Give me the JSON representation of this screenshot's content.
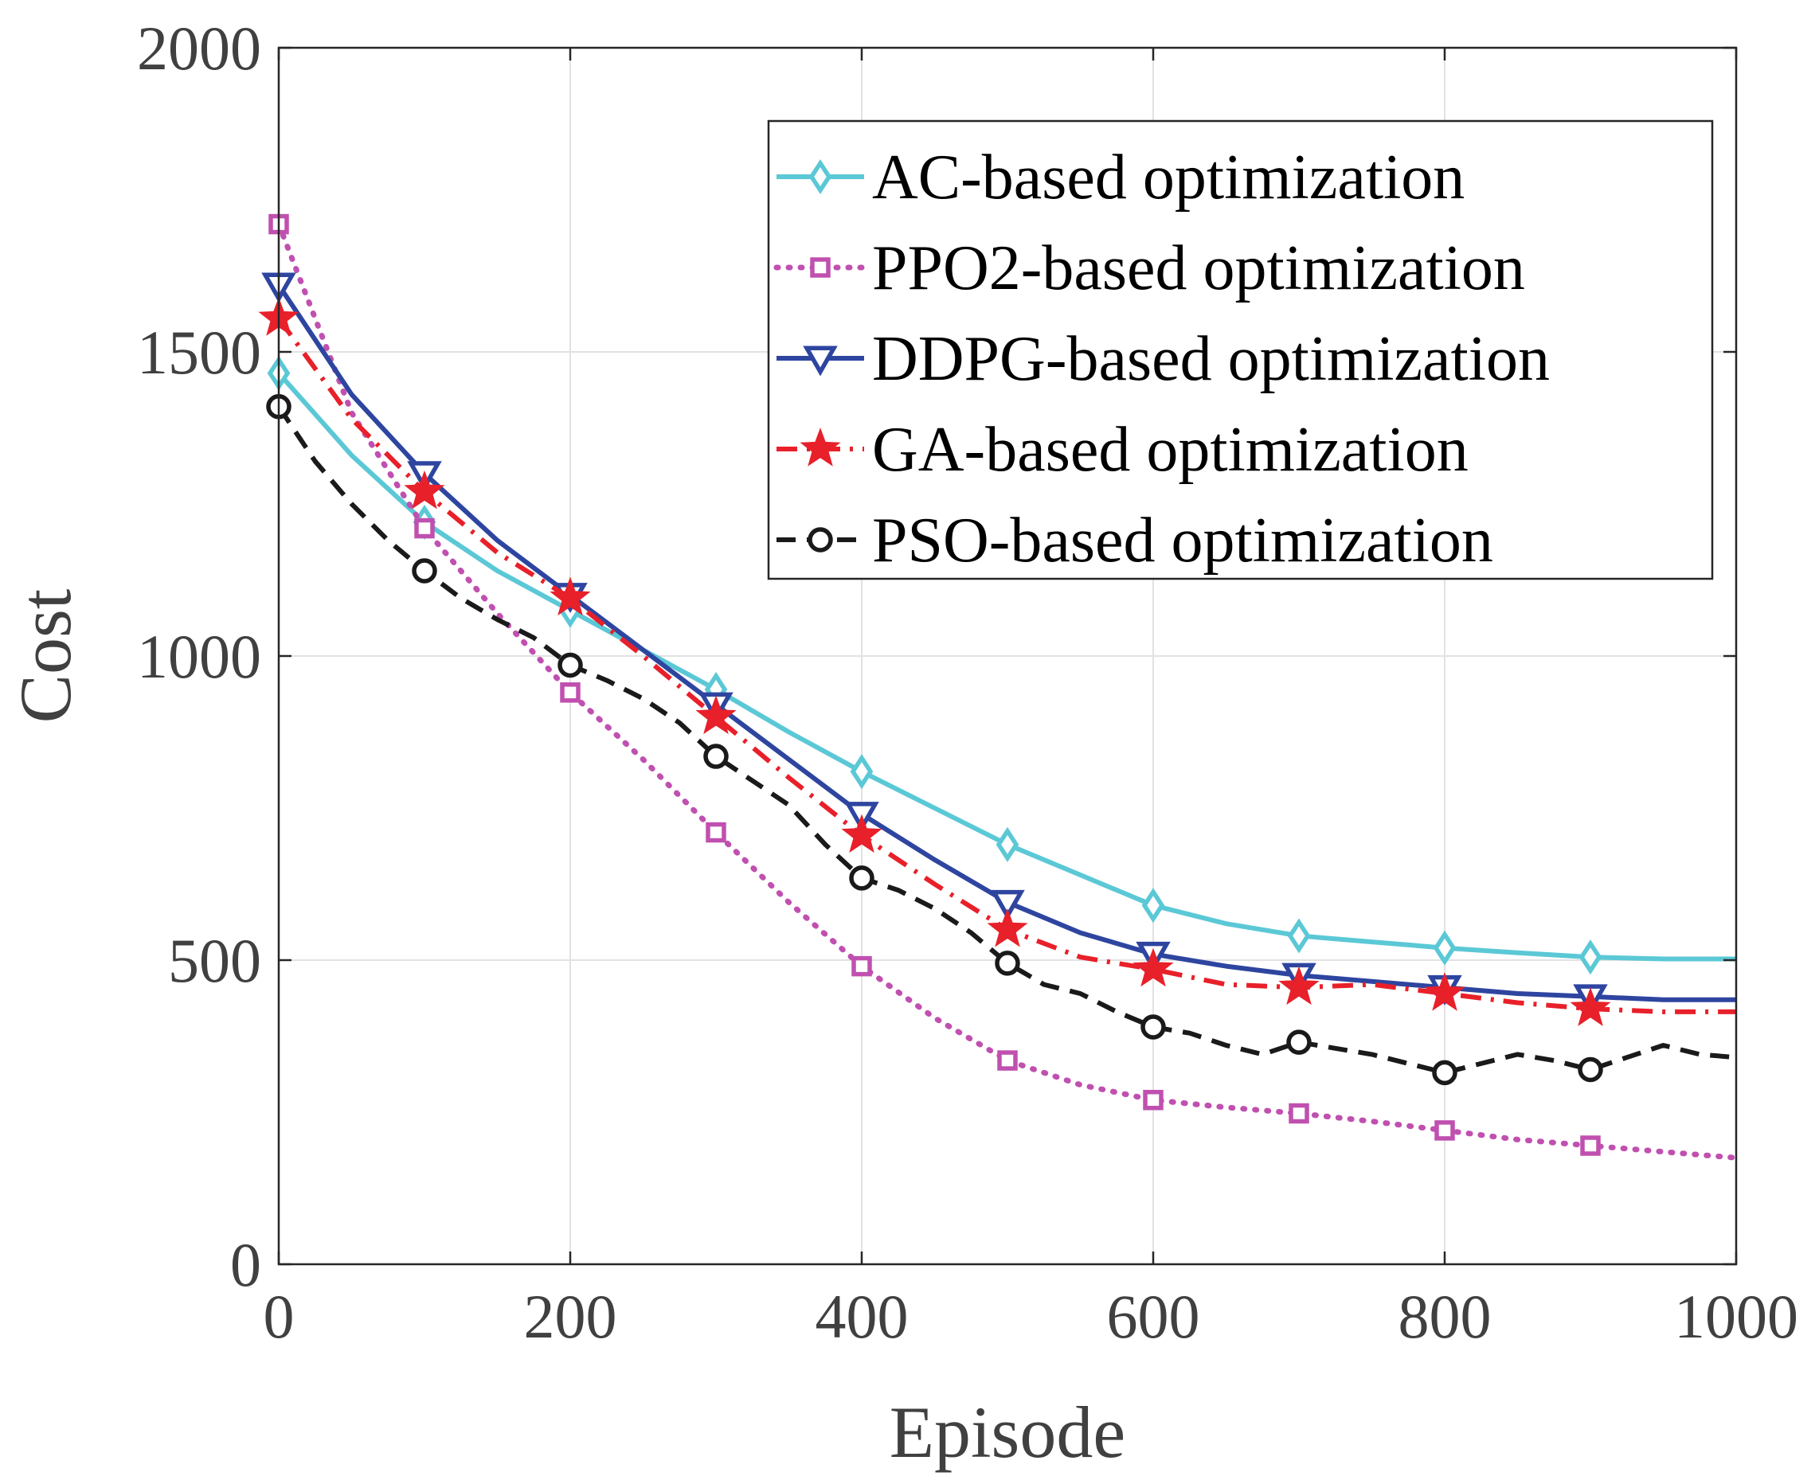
{
  "chart_data": {
    "type": "line",
    "title": "",
    "xlabel": "Episode",
    "ylabel": "Cost",
    "xlim": [
      0,
      1000
    ],
    "ylim": [
      0,
      2000
    ],
    "xticks": [
      0,
      200,
      400,
      600,
      800,
      1000
    ],
    "yticks": [
      0,
      500,
      1000,
      1500,
      2000
    ],
    "grid": true,
    "legend_position": "top-right",
    "series": [
      {
        "name": "AC-based optimization",
        "color": "#5bc8d6",
        "dash": "solid",
        "marker": "diamond",
        "x": [
          0,
          50,
          100,
          150,
          200,
          250,
          300,
          350,
          400,
          450,
          500,
          550,
          600,
          650,
          700,
          750,
          800,
          850,
          900,
          950,
          1000
        ],
        "y": [
          1465,
          1330,
          1220,
          1140,
          1075,
          1010,
          945,
          875,
          810,
          750,
          690,
          640,
          590,
          560,
          540,
          530,
          520,
          512,
          505,
          502,
          502
        ],
        "markers_x": [
          0,
          100,
          200,
          300,
          400,
          500,
          600,
          700,
          800,
          900
        ],
        "markers_y": [
          1465,
          1220,
          1075,
          945,
          810,
          690,
          590,
          540,
          520,
          505
        ]
      },
      {
        "name": "PPO2-based optimization",
        "color": "#c050b0",
        "dash": "dotted",
        "marker": "square",
        "x": [
          0,
          50,
          100,
          150,
          200,
          250,
          300,
          350,
          400,
          450,
          500,
          550,
          600,
          650,
          700,
          750,
          800,
          850,
          900,
          950,
          1000
        ],
        "y": [
          1710,
          1400,
          1210,
          1070,
          940,
          830,
          710,
          595,
          490,
          405,
          335,
          295,
          270,
          258,
          248,
          235,
          220,
          205,
          195,
          185,
          175
        ],
        "markers_x": [
          0,
          100,
          200,
          300,
          400,
          500,
          600,
          700,
          800,
          900
        ],
        "markers_y": [
          1710,
          1210,
          940,
          710,
          490,
          335,
          270,
          248,
          220,
          195
        ]
      },
      {
        "name": "DDPG-based optimization",
        "color": "#2e45a0",
        "dash": "solid",
        "marker": "triangle-down",
        "x": [
          0,
          50,
          100,
          150,
          200,
          250,
          300,
          350,
          400,
          450,
          500,
          550,
          600,
          650,
          700,
          750,
          800,
          850,
          900,
          950,
          1000
        ],
        "y": [
          1610,
          1430,
          1300,
          1190,
          1100,
          1010,
          920,
          830,
          740,
          665,
          595,
          545,
          510,
          490,
          475,
          465,
          455,
          445,
          440,
          435,
          435
        ],
        "markers_x": [
          0,
          100,
          200,
          300,
          400,
          500,
          600,
          700,
          800,
          900
        ],
        "markers_y": [
          1610,
          1300,
          1100,
          920,
          740,
          595,
          510,
          475,
          455,
          440
        ]
      },
      {
        "name": "GA-based optimization",
        "color": "#e8202a",
        "dash": "dashdot",
        "marker": "star",
        "x": [
          0,
          50,
          100,
          150,
          200,
          250,
          300,
          350,
          400,
          450,
          500,
          550,
          600,
          650,
          700,
          750,
          800,
          850,
          900,
          950,
          1000
        ],
        "y": [
          1555,
          1390,
          1270,
          1170,
          1095,
          1000,
          900,
          800,
          705,
          625,
          550,
          505,
          485,
          460,
          455,
          460,
          445,
          430,
          420,
          415,
          415
        ],
        "markers_x": [
          0,
          100,
          200,
          300,
          400,
          500,
          600,
          700,
          800,
          900
        ],
        "markers_y": [
          1555,
          1270,
          1095,
          900,
          705,
          550,
          485,
          455,
          445,
          420
        ]
      },
      {
        "name": "PSO-based optimization",
        "color": "#1a1a1a",
        "dash": "dashed",
        "marker": "circle",
        "x": [
          0,
          25,
          50,
          75,
          100,
          125,
          150,
          175,
          200,
          225,
          250,
          275,
          300,
          325,
          350,
          375,
          400,
          425,
          450,
          475,
          500,
          525,
          550,
          575,
          600,
          625,
          650,
          675,
          700,
          725,
          750,
          775,
          800,
          825,
          850,
          875,
          900,
          925,
          950,
          975,
          1000
        ],
        "y": [
          1410,
          1320,
          1250,
          1190,
          1140,
          1095,
          1060,
          1030,
          985,
          960,
          930,
          890,
          835,
          795,
          755,
          690,
          635,
          615,
          585,
          545,
          495,
          460,
          445,
          415,
          390,
          380,
          360,
          345,
          365,
          355,
          345,
          330,
          315,
          330,
          345,
          335,
          320,
          340,
          360,
          345,
          340
        ],
        "markers_x": [
          0,
          100,
          200,
          300,
          400,
          500,
          600,
          700,
          800,
          900
        ],
        "markers_y": [
          1410,
          1140,
          985,
          835,
          635,
          495,
          390,
          365,
          315,
          320
        ]
      }
    ]
  }
}
